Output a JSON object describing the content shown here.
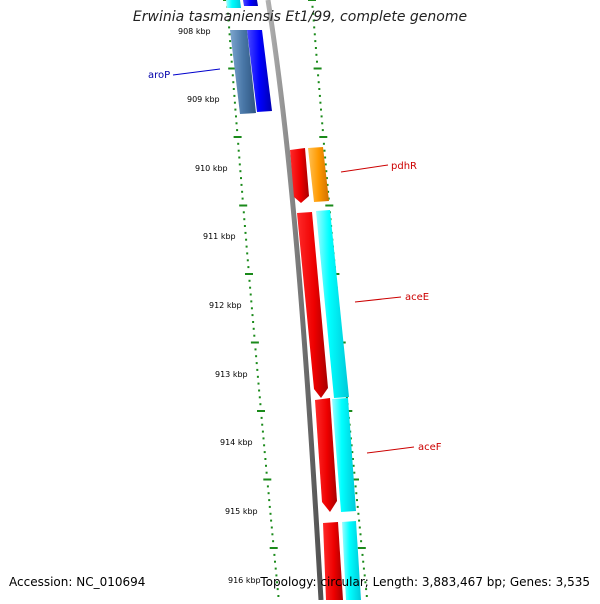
{
  "title": "Erwinia tasmaniensis Et1/99, complete genome",
  "accession_text": "Accession: NC_010694",
  "summary_text": "Topology: circular; Length: 3,883,467 bp; Genes: 3,535",
  "ticks": [
    "908 kbp",
    "909 kbp",
    "910 kbp",
    "911 kbp",
    "912 kbp",
    "913 kbp",
    "914 kbp",
    "915 kbp",
    "916 kbp"
  ],
  "genes": [
    {
      "name": "aroP",
      "color": "#0000aa"
    },
    {
      "name": "pdhR",
      "color": "#cc0000"
    },
    {
      "name": "aceE",
      "color": "#cc0000"
    },
    {
      "name": "aceF",
      "color": "#cc0000"
    }
  ],
  "colors": {
    "backbone": "#7f7f7f",
    "tick": "#1a8a1a",
    "forward_gene": "#ff0000",
    "forward_gene_dark": "#b00000",
    "cds_orange": "#ff9900",
    "cds_cyan": "#00ffff",
    "cds_blue": "#0000ff",
    "cds_steel": "#4a78a8",
    "label_line_blue": "#0000cc",
    "label_line_red": "#cc0000"
  }
}
